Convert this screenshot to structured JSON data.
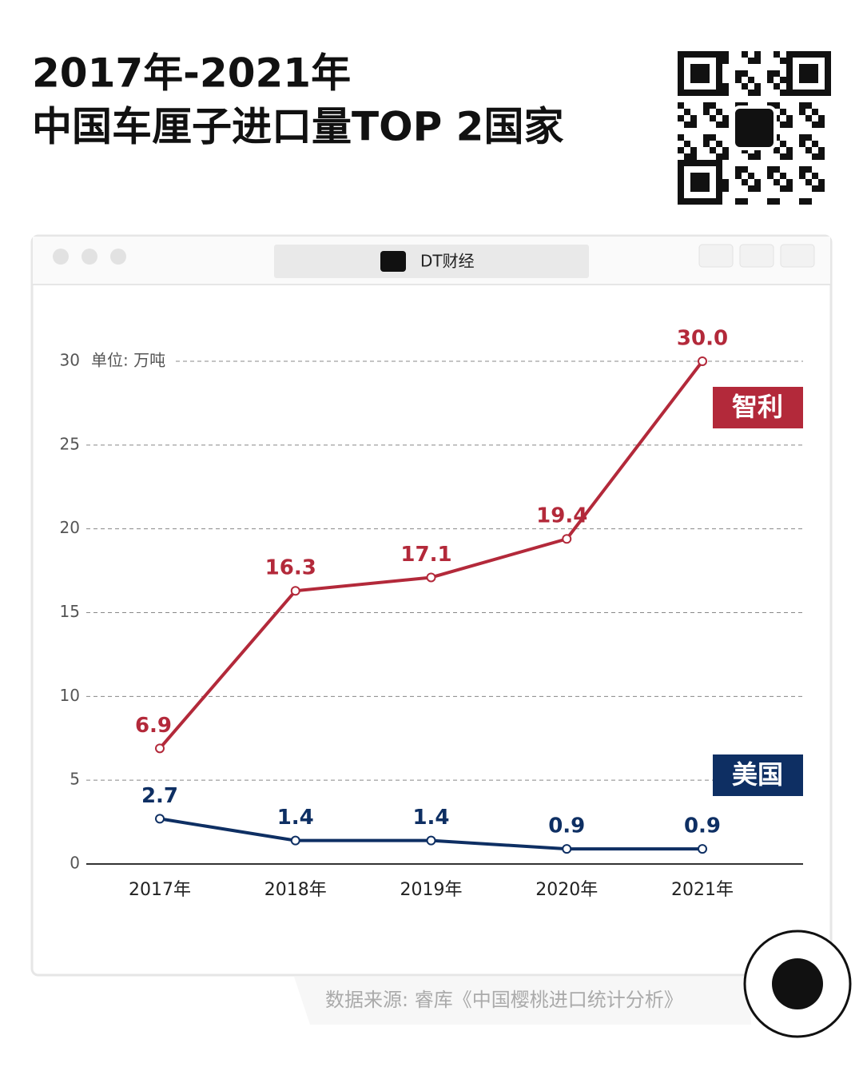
{
  "chart_data": {
    "type": "line",
    "title": [
      "2017年-2021年",
      "中国车厘子进口量TOP 2国家"
    ],
    "window_title": "DT财经",
    "y_unit": "单位: 万吨",
    "categories": [
      "2017年",
      "2018年",
      "2019年",
      "2020年",
      "2021年"
    ],
    "series": [
      {
        "name": "智利",
        "color": "#b3293a",
        "values": [
          6.9,
          16.3,
          17.1,
          19.4,
          30.0
        ],
        "value_labels": [
          "6.9",
          "16.3",
          "17.1",
          "19.4",
          "30.0"
        ]
      },
      {
        "name": "美国",
        "color": "#0e2f63",
        "values": [
          2.7,
          1.4,
          1.4,
          0.9,
          0.9
        ],
        "value_labels": [
          "2.7",
          "1.4",
          "1.4",
          "0.9",
          "0.9"
        ]
      }
    ],
    "ylim": [
      0,
      30
    ],
    "yticks": [
      0,
      5,
      10,
      15,
      20,
      25,
      30
    ],
    "grid": true,
    "source": "数据来源: 睿库《中国樱桃进口统计分析》"
  }
}
